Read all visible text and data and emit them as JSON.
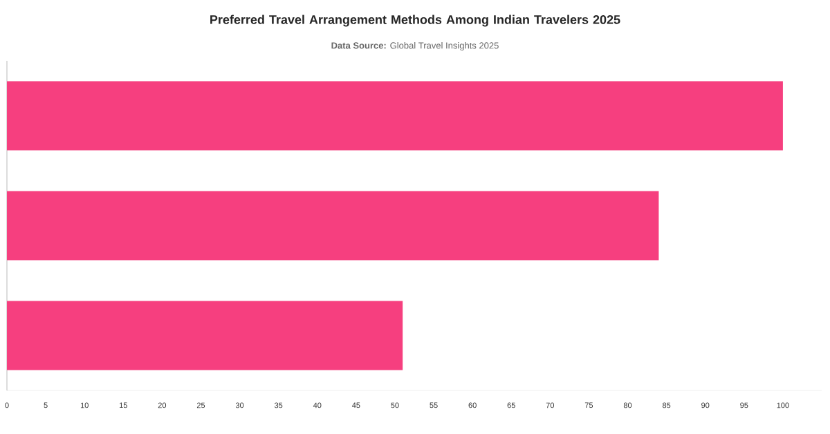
{
  "chart_data": {
    "type": "bar",
    "orientation": "horizontal",
    "title": "Preferred Travel Arrangement Methods Among Indian Travelers 2025",
    "annotations": [
      "**Data Source:** Global Travel Insights 2025"
    ],
    "categories": [
      null,
      null,
      null
    ],
    "values": [
      100,
      84,
      51
    ],
    "color": "#f63f7f",
    "xlim": [
      0,
      105
    ],
    "xticks": [
      0,
      5,
      10,
      15,
      20,
      25,
      30,
      35,
      40,
      45,
      50,
      55,
      60,
      65,
      70,
      75,
      80,
      85,
      90,
      95,
      100
    ],
    "grid": false
  }
}
